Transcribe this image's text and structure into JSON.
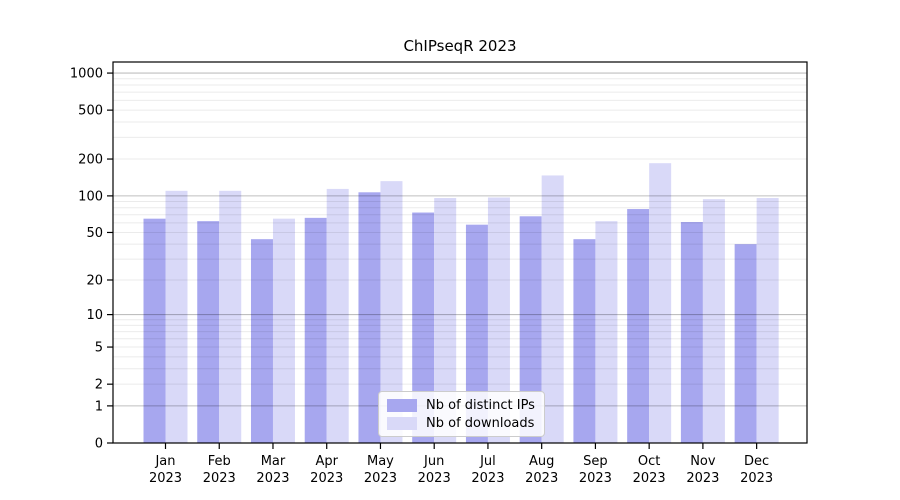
{
  "chart_data": {
    "type": "bar",
    "title": "ChIPseqR 2023",
    "year": "2023",
    "months": [
      "Jan",
      "Feb",
      "Mar",
      "Apr",
      "May",
      "Jun",
      "Jul",
      "Aug",
      "Sep",
      "Oct",
      "Nov",
      "Dec"
    ],
    "series": [
      {
        "name": "Nb of distinct IPs",
        "color": "#a7a7ef",
        "values": [
          65,
          62,
          44,
          66,
          107,
          73,
          58,
          68,
          44,
          78,
          61,
          40
        ]
      },
      {
        "name": "Nb of downloads",
        "color": "#d9d9f8",
        "values": [
          110,
          110,
          65,
          114,
          132,
          96,
          97,
          147,
          62,
          185,
          94,
          96
        ]
      }
    ],
    "yscale": "log1p",
    "ylim": [
      0,
      1230
    ],
    "yticks": [
      0,
      1,
      2,
      5,
      10,
      20,
      50,
      100,
      200,
      500,
      1000
    ],
    "major_gridlines": [
      1,
      10,
      100,
      1000
    ],
    "grid": "on",
    "legend_position": "lower-center",
    "colors": {
      "axis": "#000000",
      "grid_major": "rgba(0,0,0,0.25)",
      "grid_minor": "rgba(0,0,0,0.08)",
      "tick_text": "#000000"
    }
  }
}
